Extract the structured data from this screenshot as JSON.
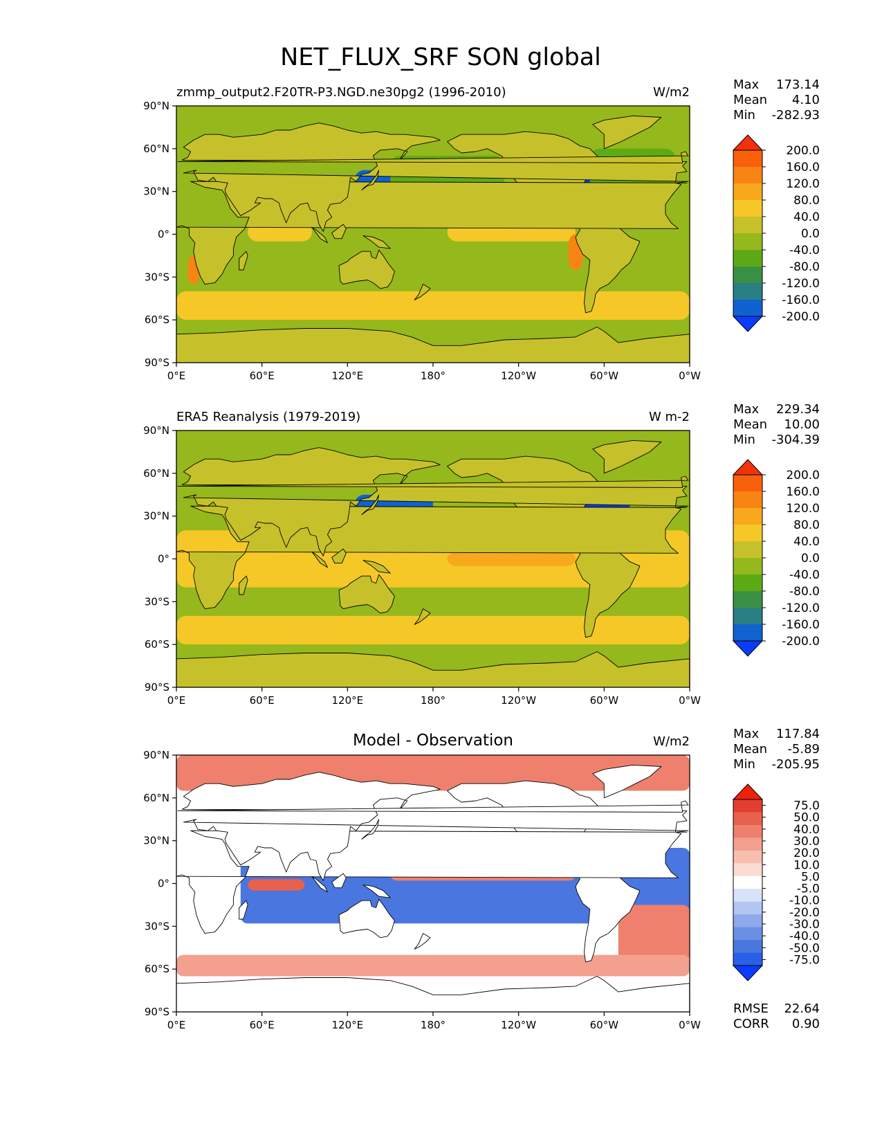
{
  "figure_title": "NET_FLUX_SRF SON global",
  "colors": {
    "abs_levels": [
      "#0a3cff",
      "#0f62cf",
      "#2a7f84",
      "#3a9145",
      "#5eaa14",
      "#95b81c",
      "#c6c12a",
      "#f5c827",
      "#f7a81c",
      "#f88413",
      "#f8600c",
      "#f2320a"
    ],
    "diff_levels": [
      "#0a3cff",
      "#2a5fe8",
      "#4a76df",
      "#6b8fe4",
      "#8fa9eb",
      "#b3c5f2",
      "#d8e2f9",
      "#ffffff",
      "#fbdcd3",
      "#f8bfb1",
      "#f4a08f",
      "#ee806d",
      "#e8604e",
      "#e23f30",
      "#f0200d"
    ],
    "coast": "#000000"
  },
  "chart_data": [
    {
      "type": "heatmap",
      "panel": "model",
      "title": "zmmp_output2.F20TR-P3.NGD.ne30pg2 (1996-2010)",
      "units": "W/m2",
      "stats": {
        "max_label": "Max",
        "max": "173.14",
        "mean_label": "Mean",
        "mean": "4.10",
        "min_label": "Min",
        "min": "-282.93"
      },
      "xlim": [
        0,
        360
      ],
      "ylim": [
        -90,
        90
      ],
      "x_ticks": [
        "0°E",
        "60°E",
        "120°E",
        "180°",
        "120°W",
        "60°W",
        "0°W"
      ],
      "y_ticks": [
        "90°N",
        "60°N",
        "30°N",
        "0°",
        "30°S",
        "60°S",
        "90°S"
      ],
      "colorbar_labels": [
        "200.0",
        "160.0",
        "120.0",
        "80.0",
        "40.0",
        "0.0",
        "-40.0",
        "-80.0",
        "-120.0",
        "-160.0",
        "-200.0"
      ],
      "features": [
        {
          "region": "Polar / high latitudes",
          "lon": [
            0,
            360
          ],
          "lat": [
            -90,
            -70
          ],
          "value": -5
        },
        {
          "region": "Southern Ocean band",
          "lon": [
            0,
            360
          ],
          "lat": [
            -60,
            -40
          ],
          "value": 50
        },
        {
          "region": "Eastern equatorial Pacific",
          "lon": [
            190,
            280
          ],
          "lat": [
            -5,
            8
          ],
          "value": 60
        },
        {
          "region": "Indian Ocean equatorial",
          "lon": [
            50,
            95
          ],
          "lat": [
            -5,
            8
          ],
          "value": 60
        },
        {
          "region": "Kuroshio current",
          "lon": [
            125,
            180
          ],
          "lat": [
            30,
            45
          ],
          "value": -180
        },
        {
          "region": "Gulf Stream",
          "lon": [
            280,
            320
          ],
          "lat": [
            35,
            48
          ],
          "value": -200
        },
        {
          "region": "North Pacific",
          "lon": [
            150,
            230
          ],
          "lat": [
            20,
            55
          ],
          "value": -50
        },
        {
          "region": "North Atlantic",
          "lon": [
            290,
            350
          ],
          "lat": [
            25,
            60
          ],
          "value": -70
        },
        {
          "region": "Benguela coast",
          "lon": [
            8,
            16
          ],
          "lat": [
            -35,
            -15
          ],
          "value": 160
        },
        {
          "region": "Peru coast",
          "lon": [
            275,
            285
          ],
          "lat": [
            -25,
            0
          ],
          "value": 150
        }
      ]
    },
    {
      "type": "heatmap",
      "panel": "observation",
      "title": "ERA5 Reanalysis (1979-2019)",
      "units": "W m-2",
      "stats": {
        "max_label": "Max",
        "max": "229.34",
        "mean_label": "Mean",
        "mean": "10.00",
        "min_label": "Min",
        "min": "-304.39"
      },
      "xlim": [
        0,
        360
      ],
      "ylim": [
        -90,
        90
      ],
      "x_ticks": [
        "0°E",
        "60°E",
        "120°E",
        "180°",
        "120°W",
        "60°W",
        "0°W"
      ],
      "y_ticks": [
        "90°N",
        "60°N",
        "30°N",
        "0°",
        "30°S",
        "60°S",
        "90°S"
      ],
      "colorbar_labels": [
        "200.0",
        "160.0",
        "120.0",
        "80.0",
        "40.0",
        "0.0",
        "-40.0",
        "-80.0",
        "-120.0",
        "-160.0",
        "-200.0"
      ],
      "features": [
        {
          "region": "Tropical oceans",
          "lon": [
            0,
            360
          ],
          "lat": [
            -20,
            20
          ],
          "value": 60
        },
        {
          "region": "Eastern equatorial Pacific",
          "lon": [
            190,
            280
          ],
          "lat": [
            -5,
            5
          ],
          "value": 120
        },
        {
          "region": "Kuroshio current",
          "lon": [
            125,
            180
          ],
          "lat": [
            30,
            45
          ],
          "value": -160
        },
        {
          "region": "Gulf Stream",
          "lon": [
            280,
            320
          ],
          "lat": [
            35,
            48
          ],
          "value": -200
        },
        {
          "region": "Southern Ocean band",
          "lon": [
            0,
            360
          ],
          "lat": [
            -60,
            -40
          ],
          "value": 50
        }
      ]
    },
    {
      "type": "heatmap",
      "panel": "difference",
      "title": "Model - Observation",
      "units": "W/m2",
      "stats": {
        "max_label": "Max",
        "max": "117.84",
        "mean_label": "Mean",
        "mean": "-5.89",
        "min_label": "Min",
        "min": "-205.95"
      },
      "metrics": {
        "rmse_label": "RMSE",
        "rmse": "22.64",
        "corr_label": "CORR",
        "corr": "0.90"
      },
      "xlim": [
        0,
        360
      ],
      "ylim": [
        -90,
        90
      ],
      "x_ticks": [
        "0°E",
        "60°E",
        "120°E",
        "180°",
        "120°W",
        "60°W",
        "0°W"
      ],
      "y_ticks": [
        "90°N",
        "60°N",
        "30°N",
        "0°",
        "30°S",
        "60°S",
        "90°S"
      ],
      "colorbar_labels": [
        "75.0",
        "50.0",
        "40.0",
        "30.0",
        "20.0",
        "10.0",
        "5.0",
        "-5.0",
        "-10.0",
        "-20.0",
        "-30.0",
        "-40.0",
        "-50.0",
        "-75.0"
      ],
      "features": [
        {
          "region": "Tropical Pacific / Indian",
          "lon": [
            45,
            360
          ],
          "lat": [
            -28,
            25
          ],
          "value": -40
        },
        {
          "region": "Equatorial Pacific tongue",
          "lon": [
            150,
            280
          ],
          "lat": [
            2,
            10
          ],
          "value": 40
        },
        {
          "region": "Indian Ocean equatorial",
          "lon": [
            50,
            90
          ],
          "lat": [
            -5,
            3
          ],
          "value": 50
        },
        {
          "region": "South Atlantic",
          "lon": [
            310,
            360
          ],
          "lat": [
            -55,
            -15
          ],
          "value": 40
        },
        {
          "region": "Southern Ocean",
          "lon": [
            0,
            360
          ],
          "lat": [
            -65,
            -50
          ],
          "value": 30
        },
        {
          "region": "Arctic",
          "lon": [
            0,
            360
          ],
          "lat": [
            65,
            90
          ],
          "value": 40
        }
      ]
    }
  ]
}
